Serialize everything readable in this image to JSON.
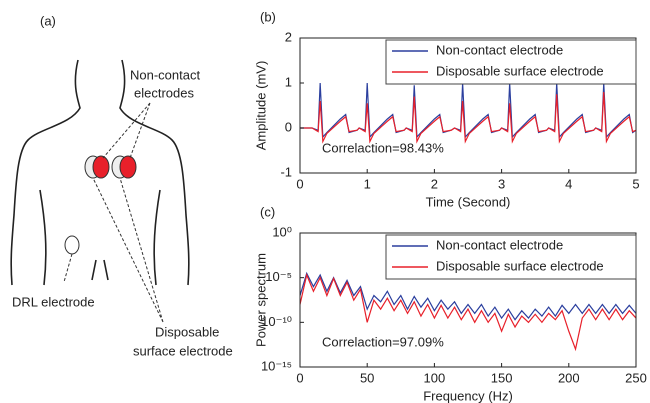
{
  "panel_a": {
    "label": "(a)",
    "non_contact_label": [
      "Non-contact",
      "electrodes"
    ],
    "drl_label": "DRL electrode",
    "disposable_label": [
      "Disposable",
      "surface electrode"
    ]
  },
  "chart_data": [
    {
      "type": "line",
      "panel_label": "(b)",
      "x_label": "Time (Second)",
      "y_label": "Amplitude (mV)",
      "annotation": "Correlaction=98.43%",
      "legend": "upper right",
      "grid": false,
      "xlim": [
        0,
        5
      ],
      "xticks": [
        0,
        1,
        2,
        3,
        4,
        5
      ],
      "ylim": [
        -1,
        2
      ],
      "yticks": [
        -1,
        0,
        1,
        2
      ],
      "x": [
        0,
        0.18,
        0.27,
        0.3,
        0.34,
        0.4,
        0.6,
        0.68,
        0.73,
        0.85,
        0.88,
        0.97,
        1.0,
        1.04,
        1.1,
        1.3,
        1.38,
        1.43,
        1.55,
        1.58,
        1.67,
        1.7,
        1.74,
        1.8,
        2.0,
        2.08,
        2.13,
        2.25,
        2.3,
        2.39,
        2.42,
        2.46,
        2.52,
        2.72,
        2.8,
        2.85,
        2.97,
        3.0,
        3.09,
        3.12,
        3.16,
        3.22,
        3.42,
        3.5,
        3.55,
        3.67,
        3.7,
        3.79,
        3.82,
        3.86,
        3.92,
        4.12,
        4.2,
        4.25,
        4.37,
        4.4,
        4.49,
        4.52,
        4.56,
        4.62,
        4.82,
        4.9,
        4.95,
        5.0
      ],
      "series": [
        {
          "name": "Non-contact electrode",
          "color": "#2b3f9e",
          "values": [
            0,
            0,
            -0.05,
            1.0,
            -0.2,
            -0.1,
            0.2,
            0.3,
            -0.1,
            -0.05,
            0,
            -0.05,
            1.0,
            -0.2,
            -0.1,
            0.2,
            0.3,
            -0.1,
            -0.05,
            0,
            -0.05,
            0.95,
            -0.2,
            -0.1,
            0.2,
            0.3,
            -0.1,
            -0.05,
            0,
            -0.05,
            1.0,
            -0.2,
            -0.1,
            0.2,
            0.3,
            -0.1,
            -0.05,
            0,
            -0.05,
            1.0,
            -0.2,
            -0.1,
            0.2,
            0.3,
            -0.1,
            -0.05,
            0,
            -0.05,
            1.0,
            -0.2,
            -0.1,
            0.2,
            0.3,
            -0.1,
            -0.05,
            0,
            -0.05,
            1.0,
            -0.2,
            -0.1,
            0.2,
            0.3,
            -0.1,
            -0.05
          ]
        },
        {
          "name": "Disposable surface electrode",
          "color": "#e8202a",
          "values": [
            0,
            0,
            -0.08,
            0.6,
            -0.3,
            -0.12,
            0.15,
            0.25,
            -0.08,
            -0.05,
            0,
            -0.08,
            0.55,
            -0.3,
            -0.12,
            0.15,
            0.25,
            -0.08,
            -0.05,
            0,
            -0.08,
            0.7,
            -0.3,
            -0.12,
            0.15,
            0.25,
            -0.08,
            -0.05,
            0,
            -0.08,
            0.6,
            -0.3,
            -0.12,
            0.15,
            0.25,
            -0.08,
            -0.05,
            0,
            -0.08,
            0.55,
            -0.3,
            -0.12,
            0.15,
            0.25,
            -0.08,
            -0.05,
            0,
            -0.08,
            0.75,
            -0.3,
            -0.12,
            0.15,
            0.25,
            -0.08,
            -0.05,
            0,
            -0.08,
            0.8,
            -0.3,
            -0.12,
            0.15,
            0.25,
            -0.08,
            -0.05
          ]
        }
      ]
    },
    {
      "type": "line",
      "panel_label": "(c)",
      "x_label": "Frequency (Hz)",
      "y_label": "Power spectrum",
      "annotation": "Correlaction=97.09%",
      "legend": "upper right",
      "grid": false,
      "log_y": true,
      "xlim": [
        0,
        250
      ],
      "xticks": [
        0,
        50,
        100,
        150,
        200,
        250
      ],
      "ylim": [
        1e-15,
        1
      ],
      "yticks": [
        {
          "value": 1e-15,
          "label": "10⁻¹⁵"
        },
        {
          "value": 1e-10,
          "label": "10⁻¹⁰"
        },
        {
          "value": 1e-05,
          "label": "10⁻⁵"
        },
        {
          "value": 1,
          "label": "10⁰"
        }
      ],
      "x": [
        0,
        5,
        10,
        15,
        20,
        25,
        30,
        35,
        40,
        45,
        50,
        55,
        60,
        65,
        70,
        75,
        80,
        85,
        90,
        95,
        100,
        105,
        110,
        115,
        120,
        125,
        130,
        135,
        140,
        145,
        150,
        155,
        160,
        165,
        170,
        175,
        180,
        185,
        190,
        195,
        200,
        205,
        210,
        215,
        220,
        225,
        230,
        235,
        240,
        245,
        250
      ],
      "series": [
        {
          "name": "Non-contact electrode",
          "color": "#2b3f9e",
          "values": [
            1e-07,
            3e-05,
            1e-06,
            2e-05,
            3e-07,
            1e-05,
            2e-07,
            5e-06,
            1e-07,
            1e-06,
            3e-09,
            1e-07,
            2e-08,
            3e-07,
            1e-08,
            1e-07,
            3e-09,
            8e-08,
            5e-09,
            5e-08,
            2e-09,
            3e-08,
            3e-09,
            2e-08,
            1e-09,
            1e-08,
            1e-09,
            1e-08,
            5e-10,
            5e-09,
            3e-10,
            3e-09,
            2e-10,
            2e-09,
            3e-10,
            3e-09,
            5e-10,
            5e-09,
            5e-10,
            8e-09,
            1e-09,
            1e-08,
            1e-09,
            1e-08,
            1e-09,
            1e-08,
            1e-09,
            1e-08,
            1e-09,
            8e-09,
            1e-09
          ]
        },
        {
          "name": "Disposable surface electrode",
          "color": "#e8202a",
          "values": [
            1e-08,
            2e-05,
            3e-07,
            1e-05,
            1e-07,
            8e-06,
            1e-07,
            3e-06,
            3e-08,
            5e-07,
            1e-10,
            3e-08,
            3e-09,
            5e-08,
            2e-09,
            3e-08,
            1e-09,
            2e-08,
            5e-10,
            1e-08,
            3e-10,
            8e-09,
            3e-10,
            5e-09,
            2e-10,
            3e-09,
            1e-10,
            2e-09,
            1e-10,
            1e-09,
            1e-11,
            8e-10,
            3e-11,
            5e-10,
            1e-10,
            8e-10,
            1e-10,
            1e-09,
            2e-10,
            2e-09,
            1e-11,
            1e-13,
            3e-10,
            3e-09,
            2e-10,
            3e-09,
            2e-10,
            3e-09,
            2e-10,
            2e-09,
            3e-10
          ]
        }
      ]
    }
  ]
}
